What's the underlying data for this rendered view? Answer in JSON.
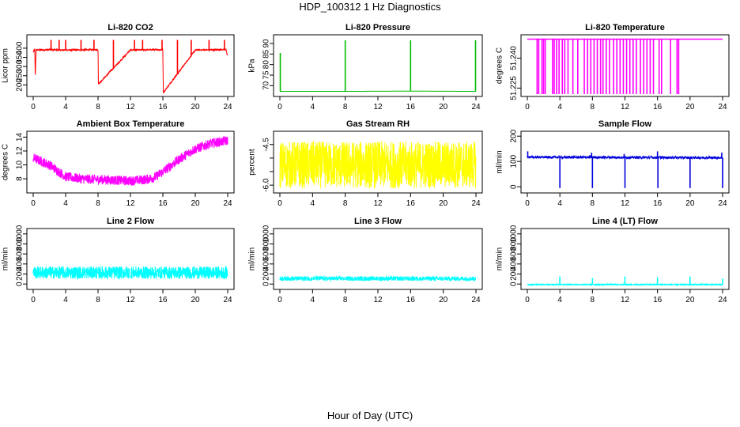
{
  "figure": {
    "title": "HDP_100312  1 Hz Diagnostics",
    "xlabel": "Hour of Day (UTC)"
  },
  "chart_data": [
    {
      "type": "line",
      "title": "Li-820 CO2",
      "ylabel": "Licor ppm",
      "color": "#ff0000",
      "xlim": [
        0,
        24
      ],
      "xticks": [
        0,
        4,
        8,
        12,
        16,
        20,
        24
      ],
      "ylim": [
        150,
        460
      ],
      "yticks": [
        200,
        250,
        300,
        350,
        400
      ],
      "noise": 8,
      "series": [
        {
          "x": [
            0,
            0.2,
            0.25,
            0.35,
            2.2,
            3.0,
            5.0,
            8.0,
            8.05,
            12.0,
            16.0,
            16.05,
            20.0,
            23.8,
            23.95,
            24.0
          ],
          "y": [
            380,
            395,
            235,
            390,
            392,
            391,
            390,
            392,
            205,
            390,
            392,
            158,
            390,
            392,
            360,
            365
          ]
        }
      ],
      "spikes": [
        {
          "x": 2.2,
          "y": 445
        },
        {
          "x": 3.2,
          "y": 445
        },
        {
          "x": 4.0,
          "y": 445
        },
        {
          "x": 5.9,
          "y": 445
        },
        {
          "x": 7.5,
          "y": 445
        },
        {
          "x": 9.9,
          "y": 445
        },
        {
          "x": 12.5,
          "y": 445
        },
        {
          "x": 13.5,
          "y": 445
        },
        {
          "x": 15.9,
          "y": 445
        },
        {
          "x": 17.8,
          "y": 445
        },
        {
          "x": 19.5,
          "y": 445
        },
        {
          "x": 21.7,
          "y": 445
        },
        {
          "x": 23.6,
          "y": 445
        }
      ]
    },
    {
      "type": "line",
      "title": "Li-820 Pressure",
      "ylabel": "kPa",
      "color": "#00bb00",
      "xlim": [
        0,
        24
      ],
      "xticks": [
        0,
        4,
        8,
        12,
        16,
        20,
        24
      ],
      "ylim": [
        66,
        93
      ],
      "yticks": [
        70,
        75,
        80,
        85,
        90
      ],
      "noise": 0,
      "series": [
        {
          "x": [
            0,
            0.5,
            8,
            16,
            23.9,
            24
          ],
          "y": [
            67.3,
            67.3,
            67.3,
            67.4,
            67.3,
            67.3
          ]
        }
      ],
      "spikes": [
        {
          "x": 0.05,
          "y": 85.5
        },
        {
          "x": 8.0,
          "y": 91.5
        },
        {
          "x": 16.0,
          "y": 91.5
        },
        {
          "x": 23.95,
          "y": 91.5
        }
      ]
    },
    {
      "type": "line",
      "title": "Li-820 Temperature",
      "ylabel": "degrees C",
      "color": "#ff00ff",
      "xlim": [
        0,
        24
      ],
      "xticks": [
        0,
        4,
        8,
        12,
        16,
        20,
        24
      ],
      "ylim": [
        51.222,
        51.2505
      ],
      "yticks": [
        51.225,
        51.24
      ],
      "ytick_labels": [
        "51.225",
        "51.240"
      ],
      "baseline": 51.2495,
      "drops_to": 51.222,
      "drops": [
        1.2,
        1.4,
        1.8,
        2.0,
        2.2,
        3.1,
        3.3,
        3.6,
        3.9,
        4.3,
        4.6,
        5.0,
        5.6,
        6.2,
        7.0,
        7.4,
        7.8,
        8.2,
        8.6,
        9.0,
        9.3,
        9.7,
        10.1,
        10.6,
        11.0,
        11.4,
        11.8,
        12.2,
        12.6,
        13.0,
        13.4,
        13.9,
        14.3,
        14.7,
        15.1,
        15.5,
        16.2,
        16.5,
        17.6,
        18.4,
        18.6
      ]
    },
    {
      "type": "line",
      "title": "Ambient Box Temperature",
      "ylabel": "degrees C",
      "color": "#ff00ff",
      "xlim": [
        0,
        24
      ],
      "xticks": [
        0,
        4,
        8,
        12,
        16,
        20,
        24
      ],
      "ylim": [
        6.3,
        14.5
      ],
      "yticks": [
        8,
        10,
        12,
        14
      ],
      "noise": 1.4,
      "series": [
        {
          "x": [
            0,
            2,
            4,
            6,
            8,
            10,
            12,
            14,
            15,
            16,
            18,
            20,
            22,
            24
          ],
          "y": [
            11,
            10,
            8.3,
            8.0,
            7.9,
            7.8,
            7.7,
            7.9,
            8.2,
            9.0,
            10.8,
            12.3,
            13.1,
            13.5
          ]
        }
      ]
    },
    {
      "type": "line",
      "title": "Gas Stream RH",
      "ylabel": "percent",
      "color": "#ffff00",
      "xlim": [
        0,
        24
      ],
      "xticks": [
        0,
        4,
        8,
        12,
        16,
        20,
        24
      ],
      "ylim": [
        -6.2,
        -4.1
      ],
      "yticks": [
        -6.0,
        -5.5,
        -5.0,
        -4.5
      ],
      "ytick_labels": [
        "-6.0",
        "",
        "",
        "-4.5"
      ],
      "noise": 1.75,
      "series": [
        {
          "x": [
            0,
            24
          ],
          "y": [
            -5.25,
            -5.25
          ]
        }
      ]
    },
    {
      "type": "line",
      "title": "Sample Flow",
      "ylabel": "ml/min",
      "color": "#0000dd",
      "xlim": [
        0,
        24
      ],
      "xticks": [
        0,
        4,
        8,
        12,
        16,
        20,
        24
      ],
      "ylim": [
        -15,
        210
      ],
      "yticks": [
        0,
        100,
        200
      ],
      "noise": 10,
      "series": [
        {
          "x": [
            0,
            24
          ],
          "y": [
            117,
            115
          ]
        }
      ],
      "spikes": [
        {
          "x": 0.05,
          "y": 140
        },
        {
          "x": 4.0,
          "y": -5
        },
        {
          "x": 7.9,
          "y": 135
        },
        {
          "x": 8.0,
          "y": -5
        },
        {
          "x": 11.9,
          "y": 130
        },
        {
          "x": 12.0,
          "y": -5
        },
        {
          "x": 16.0,
          "y": 140
        },
        {
          "x": 16.05,
          "y": -5
        },
        {
          "x": 20.0,
          "y": -5
        },
        {
          "x": 23.9,
          "y": 135
        },
        {
          "x": 24.0,
          "y": -5
        }
      ]
    },
    {
      "type": "line",
      "title": "Line 2 Flow",
      "ylabel": "ml/min",
      "color": "#00ffff",
      "xlim": [
        0,
        24
      ],
      "xticks": [
        0,
        4,
        8,
        12,
        16,
        20,
        24
      ],
      "ylim": [
        -60,
        1060
      ],
      "yticks": [
        0,
        200,
        400,
        600,
        800,
        1000
      ],
      "noise": 250,
      "series": [
        {
          "x": [
            0,
            24
          ],
          "y": [
            230,
            225
          ]
        }
      ],
      "gaps": [
        4.0,
        8.0,
        12.0,
        16.0,
        20.0
      ]
    },
    {
      "type": "line",
      "title": "Line 3 Flow",
      "ylabel": "ml/min",
      "color": "#00ffff",
      "xlim": [
        0,
        24
      ],
      "xticks": [
        0,
        4,
        8,
        12,
        16,
        20,
        24
      ],
      "ylim": [
        -60,
        1060
      ],
      "yticks": [
        0,
        200,
        400,
        600,
        800,
        1000
      ],
      "noise": 90,
      "series": [
        {
          "x": [
            0,
            24
          ],
          "y": [
            110,
            108
          ]
        }
      ],
      "gaps": [
        4.0,
        8.0,
        12.0,
        16.0,
        20.0
      ]
    },
    {
      "type": "line",
      "title": "Line 4 (LT) Flow",
      "ylabel": "ml/min",
      "color": "#00ffff",
      "xlim": [
        0,
        24
      ],
      "xticks": [
        0,
        4,
        8,
        12,
        16,
        20,
        24
      ],
      "ylim": [
        -60,
        1060
      ],
      "yticks": [
        0,
        200,
        400,
        600,
        800,
        1000
      ],
      "noise": 20,
      "series": [
        {
          "x": [
            0,
            24
          ],
          "y": [
            -10,
            -10
          ]
        }
      ],
      "spikes": [
        {
          "x": 4.0,
          "y": 150
        },
        {
          "x": 8.0,
          "y": 120
        },
        {
          "x": 12.0,
          "y": 150
        },
        {
          "x": 16.0,
          "y": 130
        },
        {
          "x": 20.0,
          "y": 150
        },
        {
          "x": 24.0,
          "y": 110
        }
      ]
    }
  ]
}
